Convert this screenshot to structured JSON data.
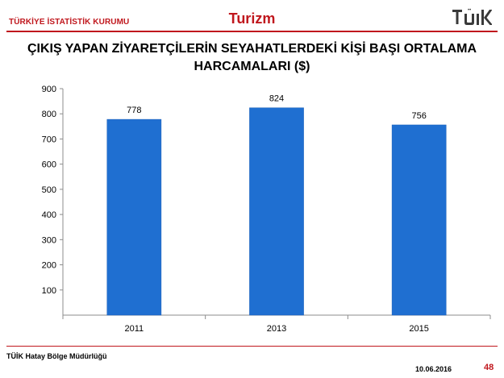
{
  "header": {
    "organization": "TÜRKİYE İSTATİSTİK KURUMU",
    "section": "Turizm",
    "logo_text": "TÜİK"
  },
  "colors": {
    "accent": "#c0171d",
    "bar": "#1f6fd1"
  },
  "chart_data": {
    "type": "bar",
    "title": "ÇIKIŞ YAPAN ZİYARETÇİLERİN SEYAHATLERDEKİ KİŞİ BAŞI ORTALAMA HARCAMALARI ($)",
    "title_lines": [
      "ÇIKIŞ YAPAN ZİYARETÇİLERİN SEYAHATLERDEKİ KİŞİ BAŞI ORTALAMA",
      "HARCAMALARI ($)"
    ],
    "categories": [
      "2011",
      "2013",
      "2015"
    ],
    "values": [
      778,
      824,
      756
    ],
    "ylim": [
      0,
      900
    ],
    "yticks": [
      100,
      200,
      300,
      400,
      500,
      600,
      700,
      800,
      900
    ],
    "grid": false,
    "legend": "none",
    "xlabel": "",
    "ylabel": ""
  },
  "footer": {
    "office": "TÜİK Hatay Bölge Müdürlüğü",
    "date": "10.06.2016",
    "page": "48"
  }
}
